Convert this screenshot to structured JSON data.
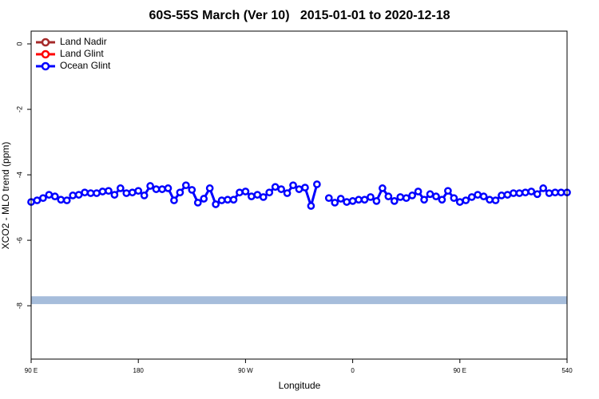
{
  "chart_data": {
    "type": "line",
    "title": "60S-55S March (Ver 10)   2015-01-01 to 2020-12-18",
    "x_label": "Longitude",
    "y_label": "XCO2 - MLO trend (ppm)",
    "xlim": [
      90,
      540
    ],
    "xticks": [
      {
        "value": 90,
        "label": "90 E"
      },
      180,
      {
        "value": 270,
        "label": "90 W"
      },
      {
        "value": 360,
        "label": "0"
      },
      {
        "value": 450,
        "label": "90 E"
      },
      540
    ],
    "ylim": [
      -9.63,
      0.39
    ],
    "yticks": [
      0,
      -2,
      -4,
      -6,
      -8
    ],
    "band": {
      "color": "#a6bddb",
      "range": [
        -7.95,
        -7.71
      ]
    },
    "legend": "top-left",
    "x": [
      90,
      95,
      100,
      105,
      110,
      115,
      120,
      125,
      130,
      135,
      140,
      145,
      150,
      155,
      160,
      165,
      170,
      175,
      180,
      185,
      190,
      195,
      200,
      205,
      210,
      215,
      220,
      225,
      230,
      235,
      240,
      245,
      250,
      255,
      260,
      265,
      270,
      275,
      280,
      285,
      290,
      295,
      300,
      305,
      310,
      315,
      320,
      325,
      330,
      335,
      340,
      345,
      350,
      355,
      360,
      365,
      370,
      375,
      380,
      385,
      390,
      395,
      400,
      405,
      410,
      415,
      420,
      425,
      430,
      435,
      440,
      445,
      450,
      455,
      460,
      465,
      470,
      475,
      480,
      485,
      490,
      495,
      500,
      505,
      510,
      515,
      520,
      525,
      530,
      535,
      540
    ],
    "series": [
      {
        "name": "Land Nadir",
        "color": "#a52a2a",
        "values": [
          null,
          null,
          null,
          null,
          null,
          null,
          null,
          null,
          null,
          null,
          null,
          null,
          null,
          null,
          null,
          null,
          null,
          null,
          null,
          null,
          null,
          null,
          null,
          null,
          null,
          null,
          null,
          null,
          null,
          null,
          null,
          null,
          null,
          null,
          null,
          null,
          null,
          null,
          null,
          null,
          null,
          null,
          null,
          null,
          null,
          null,
          null,
          null,
          null,
          null,
          null,
          null,
          null,
          null,
          null,
          null,
          null,
          null,
          null,
          null,
          null,
          null,
          null,
          null,
          null,
          null,
          null,
          null,
          null,
          null,
          null,
          null,
          null,
          null,
          null,
          null,
          null,
          null,
          null,
          null,
          null,
          null,
          null,
          null,
          null,
          null,
          null,
          null,
          null,
          null,
          null
        ]
      },
      {
        "name": "Land Glint",
        "color": "#ff0000",
        "values": [
          null,
          null,
          null,
          null,
          null,
          null,
          null,
          null,
          null,
          null,
          null,
          null,
          null,
          null,
          null,
          null,
          null,
          null,
          null,
          null,
          null,
          null,
          null,
          null,
          null,
          null,
          null,
          null,
          null,
          null,
          null,
          null,
          null,
          null,
          null,
          null,
          null,
          null,
          null,
          null,
          null,
          null,
          null,
          null,
          null,
          null,
          null,
          null,
          null,
          null,
          null,
          null,
          null,
          null,
          null,
          null,
          null,
          null,
          null,
          null,
          null,
          null,
          null,
          null,
          null,
          null,
          null,
          null,
          null,
          null,
          null,
          null,
          null,
          null,
          null,
          null,
          null,
          null,
          null,
          null,
          null,
          null,
          null,
          null,
          null,
          null,
          null,
          null,
          null,
          null,
          null
        ]
      },
      {
        "name": "Ocean Glint",
        "color": "#0000ff",
        "values": [
          -4.83,
          -4.78,
          -4.71,
          -4.61,
          -4.66,
          -4.76,
          -4.78,
          -4.63,
          -4.61,
          -4.54,
          -4.56,
          -4.56,
          -4.51,
          -4.49,
          -4.61,
          -4.41,
          -4.56,
          -4.54,
          -4.49,
          -4.63,
          -4.34,
          -4.44,
          -4.44,
          -4.41,
          -4.78,
          -4.54,
          -4.32,
          -4.46,
          -4.85,
          -4.73,
          -4.41,
          -4.9,
          -4.78,
          -4.76,
          -4.76,
          -4.54,
          -4.51,
          -4.66,
          -4.61,
          -4.68,
          -4.54,
          -4.37,
          -4.44,
          -4.56,
          -4.32,
          -4.44,
          -4.39,
          -4.95,
          -4.29,
          null,
          -4.71,
          -4.85,
          -4.73,
          -4.83,
          -4.8,
          -4.76,
          -4.76,
          -4.68,
          -4.8,
          -4.41,
          -4.66,
          -4.8,
          -4.68,
          -4.71,
          -4.63,
          -4.51,
          -4.76,
          -4.59,
          -4.66,
          -4.76,
          -4.49,
          -4.71,
          -4.83,
          -4.78,
          -4.68,
          -4.61,
          -4.66,
          -4.76,
          -4.78,
          -4.63,
          -4.61,
          -4.56,
          -4.56,
          -4.54,
          -4.51,
          -4.59,
          -4.41,
          -4.56,
          -4.54,
          -4.54,
          -4.54
        ]
      }
    ]
  }
}
